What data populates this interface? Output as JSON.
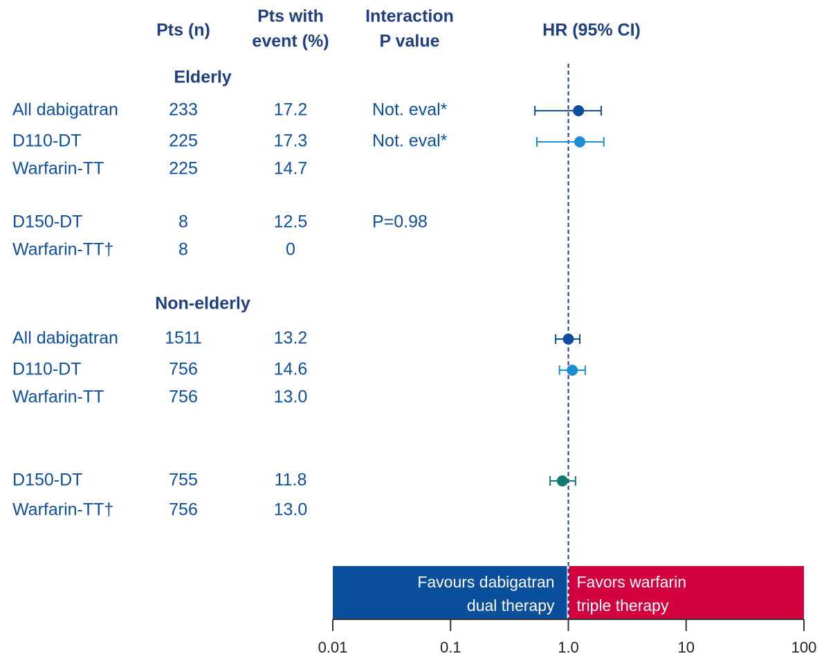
{
  "chart_data": {
    "type": "forest",
    "headers": {
      "n": [
        "Pts (n)"
      ],
      "pct": [
        "Pts with",
        "event (%)"
      ],
      "p": [
        "Interaction",
        "P value"
      ],
      "hr": [
        "HR (95% CI)"
      ]
    },
    "groups": [
      {
        "name": "Elderly",
        "rows": [
          {
            "label": "All dabigatran",
            "n": 233,
            "pct": "17.2",
            "p": "Not. eval*",
            "hr": 1.22,
            "lo": 0.52,
            "hi": 1.9,
            "color": "#0d4f9e"
          },
          {
            "label": "D110-DT",
            "n": 225,
            "pct": "17.3",
            "p": "Not. eval*",
            "hr": 1.25,
            "lo": 0.54,
            "hi": 2.0,
            "color": "#1b8fd2"
          },
          {
            "label": "Warfarin-TT",
            "n": 225,
            "pct": "14.7",
            "p": null,
            "hr": null,
            "lo": null,
            "hi": null,
            "color": null
          },
          {
            "label": "D150-DT",
            "n": 8,
            "pct": "12.5",
            "p": "P=0.98",
            "hr": null,
            "lo": null,
            "hi": null,
            "color": null
          },
          {
            "label": "Warfarin-TT†",
            "n": 8,
            "pct": "0",
            "p": null,
            "hr": null,
            "lo": null,
            "hi": null,
            "color": null
          }
        ]
      },
      {
        "name": "Non-elderly",
        "rows": [
          {
            "label": "All dabigatran",
            "n": 1511,
            "pct": "13.2",
            "p": null,
            "hr": 1.0,
            "lo": 0.78,
            "hi": 1.25,
            "color": "#0d4f9e"
          },
          {
            "label": "D110-DT",
            "n": 756,
            "pct": "14.6",
            "p": null,
            "hr": 1.08,
            "lo": 0.84,
            "hi": 1.39,
            "color": "#1b8fd2"
          },
          {
            "label": "Warfarin-TT",
            "n": 756,
            "pct": "13.0",
            "p": null,
            "hr": null,
            "lo": null,
            "hi": null,
            "color": null
          },
          {
            "label": "D150-DT",
            "n": 755,
            "pct": "11.8",
            "p": null,
            "hr": 0.89,
            "lo": 0.7,
            "hi": 1.15,
            "color": "#0f7a6e"
          },
          {
            "label": "Warfarin-TT†",
            "n": 756,
            "pct": "13.0",
            "p": null,
            "hr": null,
            "lo": null,
            "hi": null,
            "color": null
          }
        ]
      }
    ],
    "log_x": true,
    "xlim": [
      0.01,
      100
    ],
    "xticks": [
      0.01,
      0.1,
      {
        "value": 1,
        "label": "1.0"
      },
      10,
      100
    ],
    "reference": 1,
    "favours_left": {
      "lines": [
        "Favours dabigatran",
        "dual therapy"
      ],
      "color": "#0a4f9c"
    },
    "favours_right": {
      "lines": [
        "Favors warfarin",
        "triple therapy"
      ],
      "color": "#d2003f"
    }
  }
}
